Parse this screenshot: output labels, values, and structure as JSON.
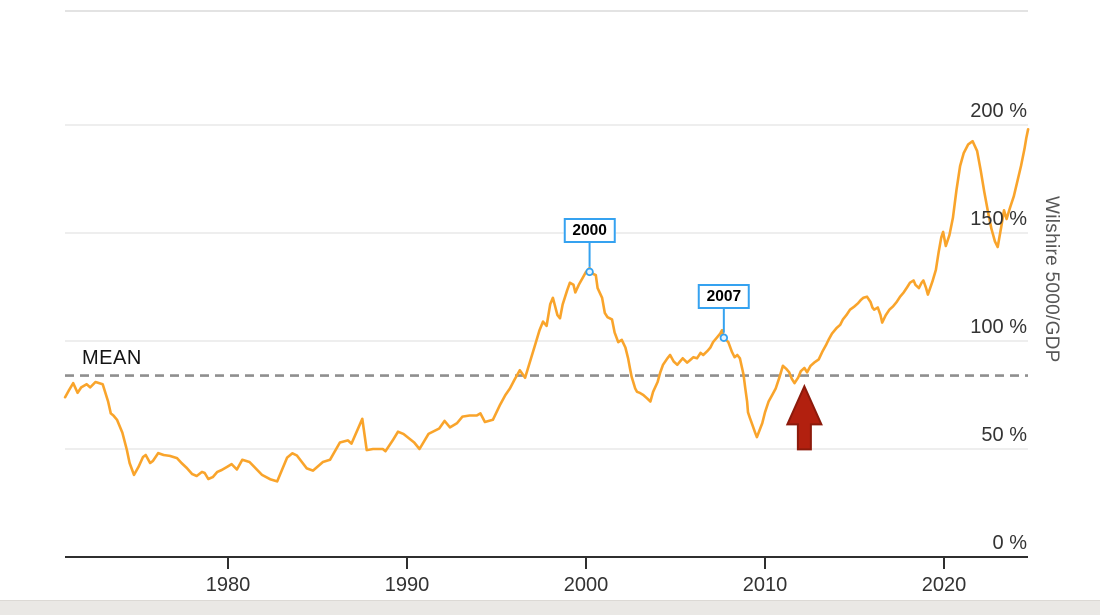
{
  "chart_data": {
    "type": "line",
    "title": "",
    "y_axis_label": "Wilshire 5000/GDP",
    "x_ticks": [
      1980,
      1990,
      2000,
      2010,
      2020
    ],
    "x_tick_labels": [
      "1980",
      "1990",
      "2000",
      "2010",
      "2020"
    ],
    "y_ticks": [
      0,
      50,
      100,
      150,
      200
    ],
    "y_tick_labels": [
      "0 %",
      "50 %",
      "100 %",
      "150 %",
      "200 %"
    ],
    "xlim": [
      1970.9,
      2024.7
    ],
    "ylim": [
      0,
      230
    ],
    "grid": true,
    "legend_position": "none",
    "mean": {
      "label": "MEAN",
      "value": 84
    },
    "annotations": [
      {
        "label": "2000",
        "year": 2000.2,
        "value": 132
      },
      {
        "label": "2007",
        "year": 2007.7,
        "value": 101.5
      }
    ],
    "arrow": {
      "year": 2012.2,
      "points_at_value": 79,
      "direction": "up",
      "color": "#b2200f",
      "border_color": "#8c1a0b"
    },
    "series": [
      {
        "name": "Wilshire 5000/GDP",
        "color": "#f9a42b",
        "points": [
          [
            1970.9,
            74
          ],
          [
            1971.1,
            77
          ],
          [
            1971.35,
            80.5
          ],
          [
            1971.6,
            76
          ],
          [
            1971.8,
            78.5
          ],
          [
            1972.1,
            80
          ],
          [
            1972.3,
            78.5
          ],
          [
            1972.6,
            81
          ],
          [
            1973.0,
            80
          ],
          [
            1973.3,
            72
          ],
          [
            1973.45,
            66.5
          ],
          [
            1973.6,
            65.5
          ],
          [
            1973.8,
            63.5
          ],
          [
            1974.1,
            57.5
          ],
          [
            1974.35,
            49.5
          ],
          [
            1974.5,
            43.5
          ],
          [
            1974.75,
            38
          ],
          [
            1975.0,
            41.7
          ],
          [
            1975.25,
            46.3
          ],
          [
            1975.4,
            47.2
          ],
          [
            1975.65,
            43.5
          ],
          [
            1975.8,
            44.4
          ],
          [
            1976.1,
            48.1
          ],
          [
            1976.4,
            47.2
          ],
          [
            1976.75,
            46.8
          ],
          [
            1977.15,
            45.8
          ],
          [
            1977.4,
            43.5
          ],
          [
            1977.7,
            41.2
          ],
          [
            1978.0,
            38.4
          ],
          [
            1978.25,
            37.5
          ],
          [
            1978.55,
            39.4
          ],
          [
            1978.7,
            38.9
          ],
          [
            1978.9,
            36.1
          ],
          [
            1979.15,
            37
          ],
          [
            1979.4,
            39.4
          ],
          [
            1979.65,
            40.3
          ],
          [
            1979.95,
            41.7
          ],
          [
            1980.2,
            43
          ],
          [
            1980.5,
            40.5
          ],
          [
            1980.8,
            45
          ],
          [
            1981.2,
            44
          ],
          [
            1981.9,
            38
          ],
          [
            1982.35,
            36
          ],
          [
            1982.75,
            35
          ],
          [
            1983.3,
            46
          ],
          [
            1983.6,
            48
          ],
          [
            1983.85,
            47
          ],
          [
            1984.4,
            41
          ],
          [
            1984.75,
            40
          ],
          [
            1985.3,
            44
          ],
          [
            1985.7,
            45
          ],
          [
            1986.25,
            53
          ],
          [
            1986.7,
            54
          ],
          [
            1986.9,
            52.5
          ],
          [
            1987.5,
            64
          ],
          [
            1987.75,
            49.5
          ],
          [
            1988.1,
            50
          ],
          [
            1988.65,
            50
          ],
          [
            1988.8,
            49
          ],
          [
            1989.2,
            54
          ],
          [
            1989.5,
            58
          ],
          [
            1989.8,
            57
          ],
          [
            1990.4,
            53
          ],
          [
            1990.7,
            50
          ],
          [
            1991.2,
            57
          ],
          [
            1991.8,
            59.5
          ],
          [
            1992.1,
            63
          ],
          [
            1992.4,
            60
          ],
          [
            1992.8,
            62
          ],
          [
            1993.1,
            65
          ],
          [
            1993.5,
            65.5
          ],
          [
            1993.9,
            65.5
          ],
          [
            1994.1,
            66.5
          ],
          [
            1994.35,
            62.5
          ],
          [
            1994.8,
            63.5
          ],
          [
            1995.2,
            70.5
          ],
          [
            1995.5,
            75
          ],
          [
            1995.75,
            78
          ],
          [
            1996.0,
            82
          ],
          [
            1996.3,
            86.5
          ],
          [
            1996.6,
            83
          ],
          [
            1997.15,
            98
          ],
          [
            1997.4,
            105
          ],
          [
            1997.6,
            109
          ],
          [
            1997.8,
            107
          ],
          [
            1998.0,
            117
          ],
          [
            1998.15,
            120
          ],
          [
            1998.4,
            112
          ],
          [
            1998.55,
            110.5
          ],
          [
            1998.7,
            117
          ],
          [
            1998.95,
            123.5
          ],
          [
            1999.1,
            127
          ],
          [
            1999.3,
            126
          ],
          [
            1999.4,
            122.5
          ],
          [
            1999.6,
            126
          ],
          [
            1999.8,
            129
          ],
          [
            2000.0,
            132
          ],
          [
            2000.2,
            133.8
          ],
          [
            2000.4,
            131
          ],
          [
            2000.55,
            130.5
          ],
          [
            2000.65,
            124.5
          ],
          [
            2000.9,
            120
          ],
          [
            2001.05,
            113
          ],
          [
            2001.2,
            111
          ],
          [
            2001.45,
            110
          ],
          [
            2001.6,
            104
          ],
          [
            2001.8,
            99.5
          ],
          [
            2002.0,
            100.5
          ],
          [
            2002.2,
            97
          ],
          [
            2002.35,
            92
          ],
          [
            2002.45,
            87.5
          ],
          [
            2002.55,
            83.5
          ],
          [
            2002.75,
            78
          ],
          [
            2002.85,
            76.5
          ],
          [
            2003.0,
            76
          ],
          [
            2003.2,
            75
          ],
          [
            2003.4,
            73.5
          ],
          [
            2003.6,
            72
          ],
          [
            2003.75,
            76.5
          ],
          [
            2004.0,
            81
          ],
          [
            2004.15,
            85.5
          ],
          [
            2004.3,
            89
          ],
          [
            2004.55,
            92
          ],
          [
            2004.7,
            93.5
          ],
          [
            2004.9,
            90.5
          ],
          [
            2005.1,
            89
          ],
          [
            2005.25,
            90.5
          ],
          [
            2005.4,
            92
          ],
          [
            2005.65,
            90
          ],
          [
            2005.8,
            91
          ],
          [
            2006.0,
            92.5
          ],
          [
            2006.2,
            92
          ],
          [
            2006.4,
            94.5
          ],
          [
            2006.55,
            93.5
          ],
          [
            2006.8,
            95.5
          ],
          [
            2006.95,
            97
          ],
          [
            2007.1,
            99.5
          ],
          [
            2007.3,
            101.5
          ],
          [
            2007.5,
            103.5
          ],
          [
            2007.6,
            105
          ],
          [
            2007.7,
            101.5
          ],
          [
            2007.95,
            99.5
          ],
          [
            2008.15,
            95
          ],
          [
            2008.3,
            92.5
          ],
          [
            2008.45,
            93.5
          ],
          [
            2008.6,
            92
          ],
          [
            2008.8,
            84.5
          ],
          [
            2008.9,
            78
          ],
          [
            2009.0,
            72
          ],
          [
            2009.05,
            67
          ],
          [
            2009.15,
            64.5
          ],
          [
            2009.3,
            61
          ],
          [
            2009.45,
            57.5
          ],
          [
            2009.55,
            55.5
          ],
          [
            2009.85,
            62
          ],
          [
            2010.0,
            67
          ],
          [
            2010.2,
            72
          ],
          [
            2010.4,
            75
          ],
          [
            2010.6,
            78
          ],
          [
            2010.8,
            83
          ],
          [
            2011.0,
            88.5
          ],
          [
            2011.2,
            87
          ],
          [
            2011.35,
            85.5
          ],
          [
            2011.5,
            82.5
          ],
          [
            2011.65,
            80.5
          ],
          [
            2011.85,
            83
          ],
          [
            2012.0,
            86
          ],
          [
            2012.2,
            87.5
          ],
          [
            2012.35,
            85.5
          ],
          [
            2012.55,
            88.5
          ],
          [
            2012.75,
            90
          ],
          [
            2013.0,
            91.5
          ],
          [
            2013.2,
            95
          ],
          [
            2013.4,
            98
          ],
          [
            2013.55,
            100.5
          ],
          [
            2013.75,
            103.5
          ],
          [
            2014.0,
            106
          ],
          [
            2014.2,
            107.5
          ],
          [
            2014.35,
            110
          ],
          [
            2014.55,
            112
          ],
          [
            2014.75,
            114.5
          ],
          [
            2015.0,
            116
          ],
          [
            2015.2,
            117.5
          ],
          [
            2015.35,
            119
          ],
          [
            2015.5,
            120
          ],
          [
            2015.7,
            120.5
          ],
          [
            2015.9,
            118
          ],
          [
            2016.0,
            115.5
          ],
          [
            2016.1,
            114.5
          ],
          [
            2016.3,
            115.5
          ],
          [
            2016.45,
            112
          ],
          [
            2016.55,
            108.5
          ],
          [
            2016.75,
            112
          ],
          [
            2016.95,
            114.5
          ],
          [
            2017.15,
            116
          ],
          [
            2017.35,
            118
          ],
          [
            2017.55,
            120.5
          ],
          [
            2017.75,
            122.5
          ],
          [
            2017.95,
            125
          ],
          [
            2018.1,
            127
          ],
          [
            2018.3,
            128
          ],
          [
            2018.4,
            126
          ],
          [
            2018.6,
            124.5
          ],
          [
            2018.75,
            127
          ],
          [
            2018.85,
            128
          ],
          [
            2019.0,
            124.5
          ],
          [
            2019.1,
            121.5
          ],
          [
            2019.35,
            127.5
          ],
          [
            2019.55,
            133
          ],
          [
            2019.7,
            141
          ],
          [
            2019.85,
            148
          ],
          [
            2019.95,
            150.5
          ],
          [
            2020.1,
            144
          ],
          [
            2020.3,
            149
          ],
          [
            2020.5,
            157
          ],
          [
            2020.7,
            170
          ],
          [
            2020.9,
            181
          ],
          [
            2021.1,
            187
          ],
          [
            2021.35,
            191
          ],
          [
            2021.6,
            192.5
          ],
          [
            2021.85,
            188
          ],
          [
            2022.05,
            179
          ],
          [
            2022.25,
            169
          ],
          [
            2022.45,
            160
          ],
          [
            2022.65,
            152
          ],
          [
            2022.85,
            146
          ],
          [
            2023.0,
            143.5
          ],
          [
            2023.2,
            153
          ],
          [
            2023.35,
            160.5
          ],
          [
            2023.5,
            156.5
          ],
          [
            2023.7,
            162
          ],
          [
            2023.9,
            167
          ],
          [
            2024.1,
            174
          ],
          [
            2024.3,
            181
          ],
          [
            2024.5,
            189
          ],
          [
            2024.6,
            194
          ],
          [
            2024.7,
            198
          ]
        ]
      }
    ],
    "colors": {
      "line": "#f9a42b",
      "grid": "#e4e4e4",
      "top_border": "#e3e3e3",
      "axis": "#2f2f2f",
      "tick_text": "#333333",
      "mean_line": "#8f8f8f",
      "annotation_blue": "#35a2f0",
      "arrow_red": "#b2200f"
    }
  }
}
